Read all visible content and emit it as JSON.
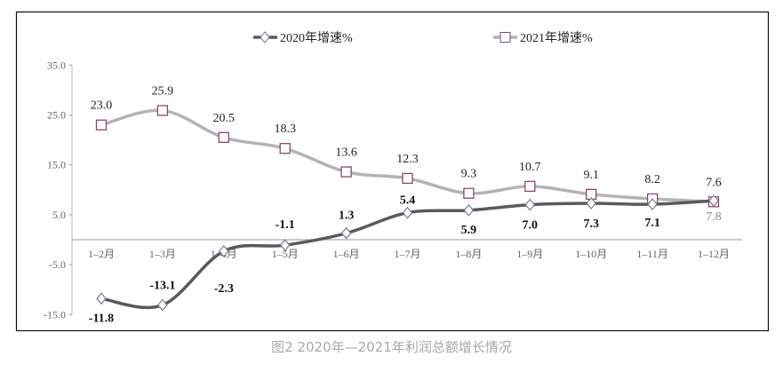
{
  "chart_data": {
    "type": "line",
    "title": "",
    "caption": "图2  2020年—2021年利润总额增长情况",
    "categories": [
      "1–2月",
      "1–3月",
      "1–4月",
      "1–5月",
      "1–6月",
      "1–7月",
      "1–8月",
      "1–9月",
      "1–10月",
      "1–11月",
      "1–12月"
    ],
    "series": [
      {
        "name": "2020年增速%",
        "values": [
          -11.8,
          -13.1,
          -2.3,
          -1.1,
          1.3,
          5.4,
          5.9,
          7.0,
          7.3,
          7.1,
          7.8
        ],
        "color": "#5a5a5a",
        "marker": "diamond"
      },
      {
        "name": "2021年增速%",
        "values": [
          23.0,
          25.9,
          20.5,
          18.3,
          13.6,
          12.3,
          9.3,
          10.7,
          9.1,
          8.2,
          7.6
        ],
        "color": "#b4b4b4",
        "marker": "square",
        "marker_color": "#8a4a68"
      }
    ],
    "yticks": [
      "35.0",
      "25.0",
      "15.0",
      "5.0",
      "-5.0",
      "-15.0"
    ],
    "ylim": [
      -15,
      35
    ],
    "grid": false,
    "legend": "top"
  }
}
